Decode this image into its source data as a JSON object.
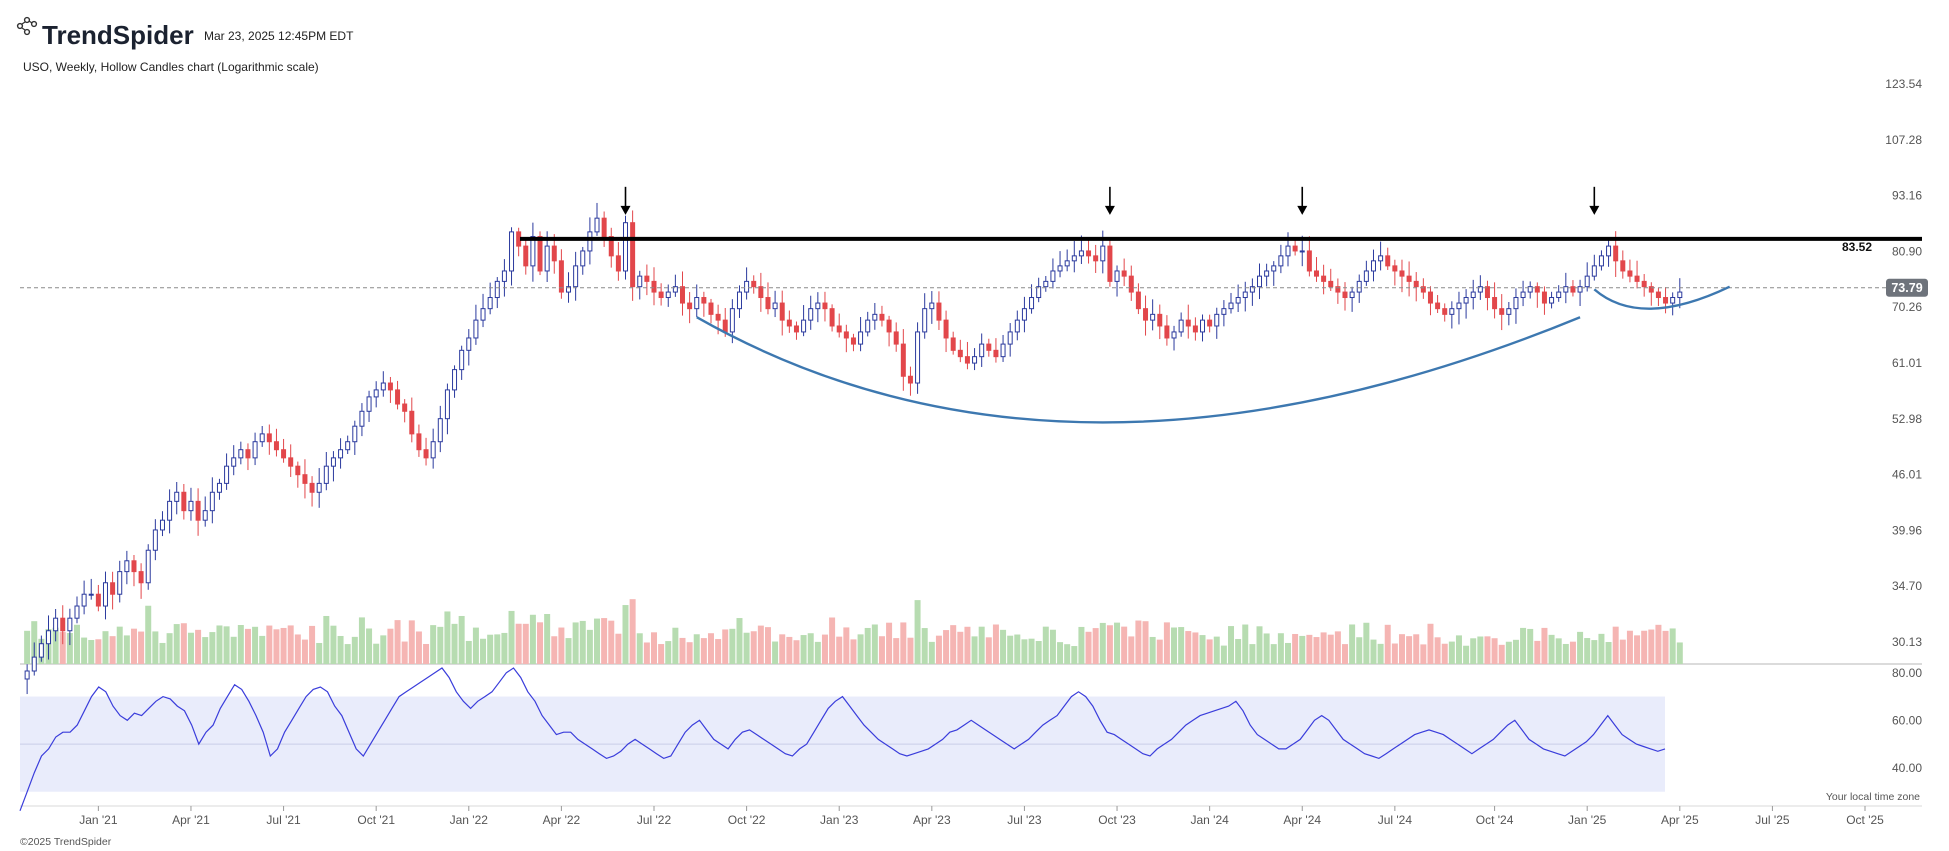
{
  "header": {
    "brand_name": "TrendSpider",
    "timestamp": "Mar 23, 2025 12:45PM EDT",
    "chart_subtitle": "USO, Weekly, Hollow Candles chart (Logarithmic scale)"
  },
  "footer": {
    "copyright": "©2025 TrendSpider",
    "timezone_note": "Your local time zone"
  },
  "icons": {
    "brand_logo": "trendspider-logo-icon",
    "peak_marker": "down-arrow-icon"
  },
  "colors": {
    "bull": "#2b3a9e",
    "bear": "#e2474b",
    "vol_up": "#b7dcb1",
    "vol_down": "#f5b5b3",
    "rsi_line": "#3a3ddb",
    "rsi_band": "#e9ecfb",
    "cup_curve": "#3d78b0",
    "resistance": "#000000",
    "last_price_badge": "#6e737b"
  },
  "chart_data": [
    {
      "type": "candlestick",
      "name": "price",
      "scale": "log",
      "ylim": [
        28.5,
        128.0
      ],
      "y_ticks": [
        "123.54",
        "107.28",
        "93.16",
        "80.90",
        "70.26",
        "61.01",
        "52.98",
        "46.01",
        "39.96",
        "34.70",
        "30.13"
      ],
      "x_range": [
        "2020-10-19",
        "2025-12-01"
      ],
      "x_ticks": [
        {
          "date": "2021-01-04",
          "label": "Jan '21"
        },
        {
          "date": "2021-04-05",
          "label": "Apr '21"
        },
        {
          "date": "2021-07-05",
          "label": "Jul '21"
        },
        {
          "date": "2021-10-04",
          "label": "Oct '21"
        },
        {
          "date": "2022-01-03",
          "label": "Jan '22"
        },
        {
          "date": "2022-04-04",
          "label": "Apr '22"
        },
        {
          "date": "2022-07-04",
          "label": "Jul '22"
        },
        {
          "date": "2022-10-03",
          "label": "Oct '22"
        },
        {
          "date": "2023-01-02",
          "label": "Jan '23"
        },
        {
          "date": "2023-04-03",
          "label": "Apr '23"
        },
        {
          "date": "2023-07-03",
          "label": "Jul '23"
        },
        {
          "date": "2023-10-02",
          "label": "Oct '23"
        },
        {
          "date": "2024-01-01",
          "label": "Jan '24"
        },
        {
          "date": "2024-04-01",
          "label": "Apr '24"
        },
        {
          "date": "2024-07-01",
          "label": "Jul '24"
        },
        {
          "date": "2024-10-07",
          "label": "Oct '24"
        },
        {
          "date": "2025-01-06",
          "label": "Jan '25"
        },
        {
          "date": "2025-04-07",
          "label": "Apr '25"
        },
        {
          "date": "2025-07-07",
          "label": "Jul '25"
        },
        {
          "date": "2025-10-06",
          "label": "Oct '25"
        }
      ],
      "candle_start": "2020-10-26",
      "candle_interval": "weekly",
      "closes": [
        28,
        29,
        30,
        31,
        32,
        31,
        32,
        33,
        34,
        34,
        33,
        35,
        34,
        36,
        37,
        36,
        35,
        38,
        40,
        41,
        43,
        44,
        42,
        43,
        41,
        42,
        44,
        45,
        47,
        48,
        49,
        48,
        50,
        51,
        50,
        49,
        48,
        47,
        46,
        45,
        44,
        45,
        47,
        48,
        49,
        50,
        52,
        54,
        56,
        57,
        58,
        57,
        55,
        54,
        51,
        49,
        48,
        50,
        53,
        57,
        60,
        63,
        65,
        68,
        70,
        72,
        75,
        77,
        85,
        82,
        78,
        80,
        77,
        82,
        79,
        76,
        74,
        78,
        81,
        85,
        88,
        84,
        80,
        77,
        75,
        74,
        76,
        75,
        73,
        72,
        73,
        74,
        71,
        70,
        72,
        71,
        69,
        68,
        66,
        70,
        73,
        75,
        74,
        72,
        70,
        71,
        68,
        67,
        66,
        68,
        70,
        71,
        70,
        67,
        66,
        65,
        64,
        66,
        68,
        69,
        68,
        66,
        64,
        59,
        62,
        66,
        70,
        71,
        68,
        65,
        63,
        62,
        61,
        62,
        64,
        63,
        62,
        64,
        66,
        68,
        70,
        72,
        74,
        75,
        77,
        78,
        79,
        80,
        81,
        80,
        79,
        74,
        75,
        77,
        76,
        73,
        70,
        68,
        69,
        67,
        65,
        66,
        68,
        67,
        66,
        68,
        67,
        69,
        70,
        71,
        72,
        73,
        74,
        76,
        77,
        78,
        80,
        82,
        81,
        79,
        77,
        76,
        75,
        74,
        73,
        72,
        73,
        75,
        77,
        79,
        80,
        78,
        77,
        76,
        75,
        74,
        73,
        71,
        70,
        69,
        70,
        71,
        72,
        73,
        74,
        72,
        70,
        69,
        70,
        72,
        73,
        74,
        73,
        71,
        72,
        73,
        74,
        73,
        74,
        76,
        78,
        80,
        82,
        79,
        77,
        76,
        75,
        74,
        73,
        72,
        71,
        72,
        73
      ],
      "events": [
        {
          "date": "2022-03-07",
          "close": 84
        },
        {
          "date": "2022-04-04",
          "close": 73
        },
        {
          "date": "2022-06-06",
          "close": 87
        },
        {
          "date": "2023-03-13",
          "close": 58
        },
        {
          "date": "2023-09-18",
          "close": 82
        },
        {
          "date": "2024-04-01",
          "close": 81
        }
      ],
      "last_price": 73.79,
      "resistance_level": 83.52,
      "peak_markers": [
        "2022-06-06",
        "2023-09-25",
        "2024-04-01",
        "2025-01-13"
      ],
      "cup_arc": {
        "from": [
          "2022-08-15",
          68.5
        ],
        "bottom": [
          "2023-09-18",
          52.5
        ],
        "to": [
          "2024-12-30",
          68.5
        ]
      },
      "handle_arc": {
        "from": [
          "2025-01-13",
          73.5
        ],
        "bottom": [
          "2025-03-10",
          70.0
        ],
        "to": [
          "2025-05-26",
          74.0
        ]
      },
      "labels": {
        "resistance_value": "83.52",
        "last_price_value": "73.79"
      }
    },
    {
      "type": "bar",
      "name": "volume",
      "axis": "none"
    },
    {
      "type": "line",
      "name": "rsi",
      "ylim": [
        24,
        82
      ],
      "y_ticks": [
        "80.00",
        "60.00",
        "40.00"
      ],
      "band": [
        30,
        70
      ],
      "midline": 50,
      "values": [
        22,
        30,
        38,
        45,
        48,
        53,
        55,
        55,
        58,
        64,
        70,
        74,
        72,
        66,
        62,
        60,
        63,
        62,
        65,
        68,
        70,
        69,
        66,
        64,
        58,
        50,
        55,
        58,
        65,
        70,
        75,
        73,
        68,
        62,
        55,
        45,
        48,
        55,
        60,
        65,
        70,
        73,
        74,
        72,
        66,
        62,
        55,
        48,
        45,
        50,
        55,
        60,
        65,
        70,
        72,
        74,
        76,
        78,
        80,
        82,
        78,
        72,
        68,
        65,
        68,
        70,
        72,
        76,
        80,
        82,
        78,
        72,
        68,
        62,
        58,
        54,
        55,
        55,
        52,
        50,
        48,
        46,
        44,
        45,
        47,
        50,
        52,
        50,
        48,
        46,
        44,
        45,
        50,
        55,
        58,
        60,
        56,
        52,
        50,
        48,
        52,
        55,
        56,
        54,
        52,
        50,
        48,
        46,
        45,
        48,
        50,
        55,
        60,
        65,
        68,
        70,
        66,
        62,
        58,
        55,
        52,
        50,
        48,
        46,
        45,
        46,
        47,
        48,
        50,
        52,
        55,
        56,
        58,
        60,
        58,
        56,
        54,
        52,
        50,
        48,
        50,
        52,
        55,
        58,
        60,
        62,
        66,
        70,
        72,
        70,
        66,
        60,
        55,
        54,
        52,
        50,
        48,
        46,
        45,
        48,
        50,
        52,
        55,
        58,
        60,
        62,
        63,
        64,
        65,
        66,
        68,
        64,
        58,
        54,
        52,
        50,
        48,
        48,
        50,
        52,
        56,
        60,
        62,
        60,
        56,
        52,
        50,
        48,
        46,
        45,
        44,
        46,
        48,
        50,
        52,
        54,
        55,
        56,
        55,
        54,
        52,
        50,
        48,
        46,
        48,
        50,
        52,
        55,
        58,
        60,
        56,
        52,
        50,
        48,
        47,
        46,
        45,
        47,
        49,
        51,
        54,
        58,
        62,
        58,
        54,
        52,
        50,
        49,
        48,
        47,
        48
      ]
    }
  ]
}
